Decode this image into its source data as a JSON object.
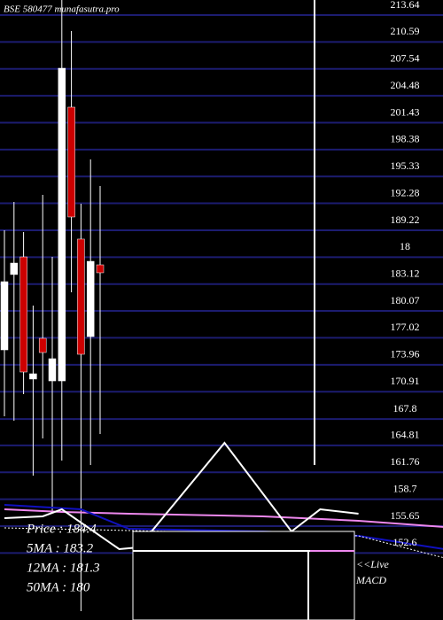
{
  "chart_data": {
    "type": "candlestick",
    "title": "BSE 580477 munafasutra.pro",
    "categories": [
      null,
      null,
      null,
      null,
      null,
      null,
      null,
      null,
      null,
      null,
      null
    ],
    "open": [
      175.65,
      184.2,
      186.2,
      172.34,
      176.96,
      172.13,
      172.13,
      203.19,
      188.22,
      177.16,
      185.3
    ],
    "high": [
      189.22,
      192.44,
      189.02,
      180.68,
      193.24,
      186.2,
      215.35,
      211.83,
      192.23,
      197.26,
      194.24
    ],
    "low": [
      168.11,
      167.61,
      170.63,
      161.38,
      165.6,
      157.06,
      163.09,
      182.19,
      146.0,
      162.59,
      166.1
    ],
    "close": [
      183.39,
      185.5,
      173.14,
      172.94,
      175.35,
      174.65,
      207.61,
      190.73,
      175.15,
      185.7,
      184.4
    ],
    "up_color": "#ffffff",
    "down_color": "#cc0000",
    "lines": [
      {
        "color": "#ee88ee",
        "x": [
          0,
          6,
          13,
          27,
          37,
          46
        ],
        "values": [
          157.56,
          157.26,
          157.06,
          156.76,
          156.26,
          155.55
        ]
      },
      {
        "color": "#1010c0",
        "x": [
          0,
          8,
          13,
          27,
          37,
          46
        ],
        "values": [
          158.06,
          157.56,
          155.35,
          155.05,
          154.55,
          153.04
        ]
      },
      {
        "color": "#ffffff",
        "x": [
          0,
          4,
          6,
          12,
          14,
          23,
          30,
          33,
          37
        ],
        "values": [
          156.56,
          156.76,
          157.56,
          153.04,
          153.24,
          165.1,
          155.05,
          157.56,
          157.06
        ]
      },
      {
        "color": "#ffffff",
        "dash": true,
        "x": [
          0,
          9,
          37,
          46
        ],
        "values": [
          155.45,
          155.25,
          154.55,
          152.04
        ]
      }
    ],
    "ylim": [
      145.0,
      215.35
    ],
    "yticks": [
      213.64,
      210.59,
      207.54,
      204.48,
      201.43,
      198.38,
      195.33,
      192.28,
      189.22,
      {
        "value": 186.17,
        "label": "18"
      },
      183.12,
      180.07,
      177.02,
      173.96,
      170.91,
      167.8,
      164.81,
      161.76,
      158.7,
      155.65,
      152.6
    ],
    "grid": true,
    "grid_color": "#1c1c70",
    "info": [
      "Price   : 184.4",
      "5MA : 183.2",
      "12MA : 181.3",
      "50MA : 180"
    ],
    "macd_label": [
      "<<Live",
      "MACD"
    ]
  }
}
